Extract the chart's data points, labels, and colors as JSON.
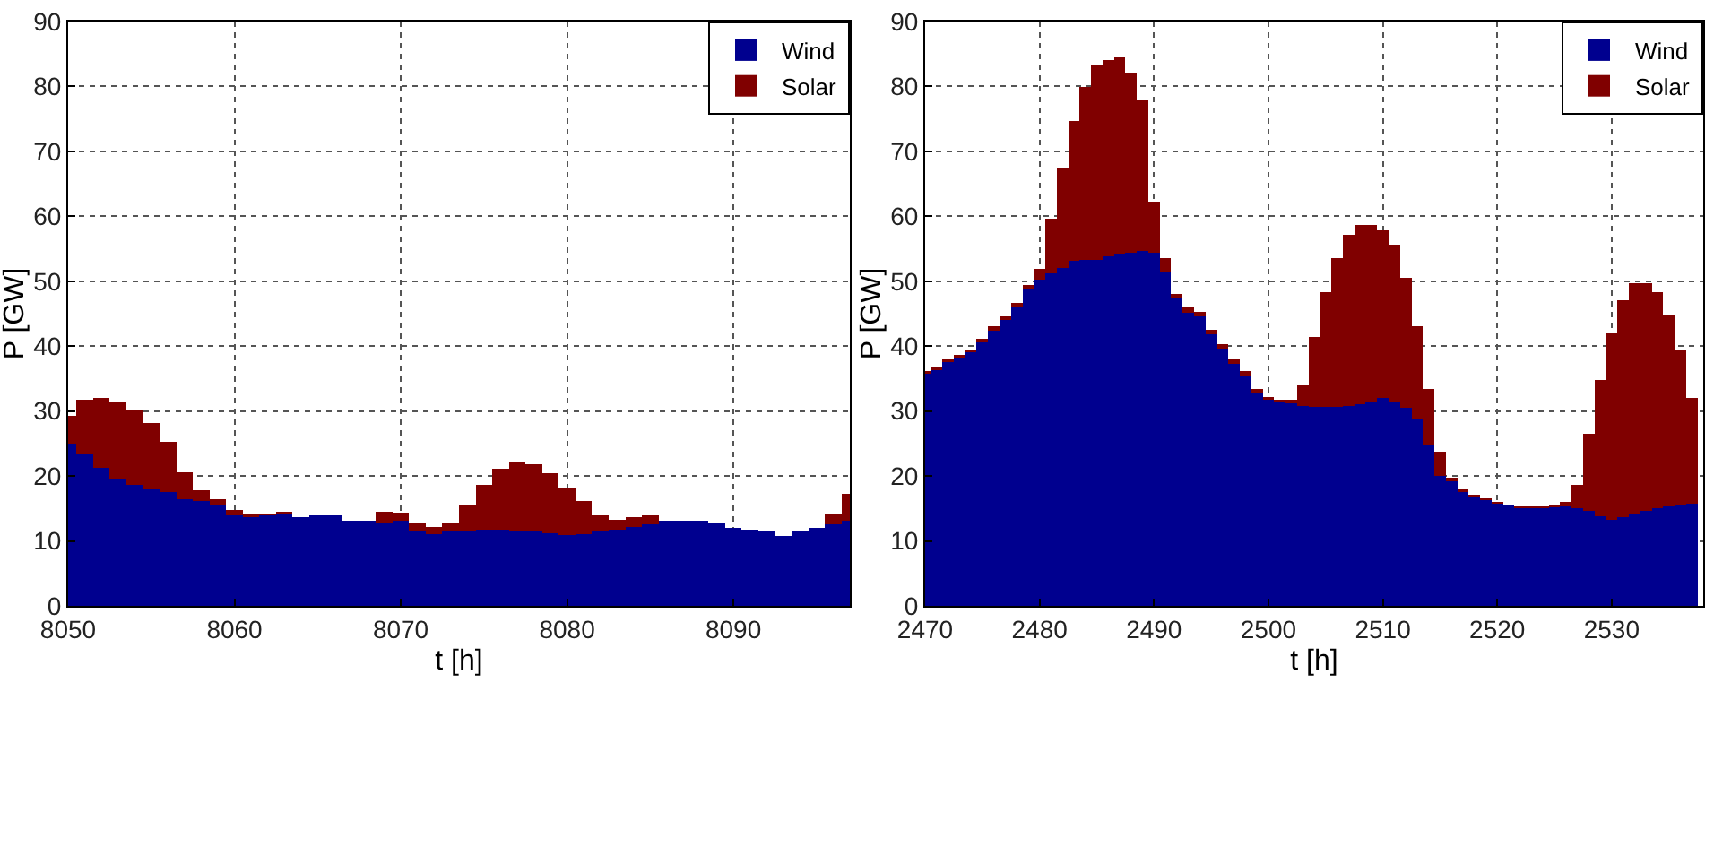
{
  "chart_data": [
    {
      "type": "bar",
      "stacked": true,
      "xlabel": "t [h]",
      "ylabel": "P [GW]",
      "x": [
        8050,
        8051,
        8052,
        8053,
        8054,
        8055,
        8056,
        8057,
        8058,
        8059,
        8060,
        8061,
        8062,
        8063,
        8064,
        8065,
        8066,
        8067,
        8068,
        8069,
        8070,
        8071,
        8072,
        8073,
        8074,
        8075,
        8076,
        8077,
        8078,
        8079,
        8080,
        8081,
        8082,
        8083,
        8084,
        8085,
        8086,
        8087,
        8088,
        8089,
        8090,
        8091,
        8092,
        8093,
        8094,
        8095,
        8096,
        8097
      ],
      "series": [
        {
          "name": "Wind",
          "color": "#00008f",
          "values": [
            25,
            23.5,
            21.2,
            19.6,
            18.7,
            18,
            17.5,
            16.4,
            16.2,
            15.4,
            14,
            13.7,
            14,
            14.2,
            13.6,
            13.9,
            13.9,
            13.1,
            13.1,
            12.9,
            13.1,
            11.5,
            11,
            11.4,
            11.5,
            11.7,
            11.7,
            11.6,
            11.4,
            11.2,
            10.9,
            11.1,
            11.4,
            11.7,
            12.1,
            12.6,
            13.1,
            13.1,
            13.1,
            12.8,
            12,
            11.7,
            11.5,
            10.7,
            11.4,
            12,
            12.6,
            13.1
          ]
        },
        {
          "name": "Solar",
          "color": "#800000",
          "values": [
            4.2,
            8.3,
            10.8,
            11.9,
            11.5,
            10.2,
            7.7,
            4.2,
            1.6,
            1,
            0.8,
            0.5,
            0.2,
            0.3,
            0,
            0,
            0,
            0,
            0,
            1.6,
            1.2,
            1.3,
            1.2,
            1.4,
            4.1,
            7,
            9.4,
            10.5,
            10.4,
            9.2,
            7.3,
            5,
            2.6,
            1.6,
            1.6,
            1.4,
            0,
            0,
            0,
            0,
            0,
            0,
            0,
            0,
            0,
            0,
            1.6,
            4.2
          ]
        }
      ],
      "xlim": [
        8050,
        8097
      ],
      "xticks": [
        8050,
        8060,
        8070,
        8080,
        8090
      ],
      "ylim": [
        0,
        90
      ],
      "yticks": [
        0,
        10,
        20,
        30,
        40,
        50,
        60,
        70,
        80,
        90
      ],
      "grid": true,
      "legend": "top right"
    },
    {
      "type": "bar",
      "stacked": true,
      "xlabel": "t [h]",
      "ylabel": "P [GW]",
      "x": [
        2470,
        2471,
        2472,
        2473,
        2474,
        2475,
        2476,
        2477,
        2478,
        2479,
        2480,
        2481,
        2482,
        2483,
        2484,
        2485,
        2486,
        2487,
        2488,
        2489,
        2490,
        2491,
        2492,
        2493,
        2494,
        2495,
        2496,
        2497,
        2498,
        2499,
        2500,
        2501,
        2502,
        2503,
        2504,
        2505,
        2506,
        2507,
        2508,
        2509,
        2510,
        2511,
        2512,
        2513,
        2514,
        2515,
        2516,
        2517,
        2518,
        2519,
        2520,
        2521,
        2522,
        2523,
        2524,
        2525,
        2526,
        2527,
        2528,
        2529,
        2530,
        2531,
        2532,
        2533,
        2534,
        2535,
        2536,
        2537
      ],
      "series": [
        {
          "name": "Wind",
          "color": "#00008f",
          "values": [
            35.7,
            36.3,
            37.5,
            38.2,
            39,
            40.6,
            42.4,
            44,
            46,
            48.8,
            50.3,
            51.2,
            52.1,
            53.1,
            53.3,
            53.3,
            53.8,
            54.2,
            54.4,
            54.7,
            54.4,
            51.5,
            47.3,
            45.2,
            44.6,
            41.8,
            39.6,
            37.3,
            35.4,
            32.9,
            31.8,
            31.5,
            31.2,
            30.8,
            30.6,
            30.6,
            30.6,
            30.8,
            31,
            31.3,
            32,
            31.5,
            30.5,
            28.8,
            24.7,
            20,
            19.2,
            17.6,
            16.8,
            16.3,
            15.8,
            15.4,
            15.1,
            15.1,
            15.1,
            15.2,
            15.3,
            15,
            14.6,
            13.8,
            13.3,
            13.6,
            14.2,
            14.6,
            15,
            15.3,
            15.6,
            15.8
          ]
        },
        {
          "name": "Solar",
          "color": "#800000",
          "values": [
            0.4,
            0.5,
            0.5,
            0.5,
            0.5,
            0.6,
            0.6,
            0.6,
            0.7,
            0.6,
            1.6,
            8.5,
            15.4,
            21.6,
            26.6,
            30.1,
            30.2,
            30.3,
            27.8,
            23.1,
            7.8,
            2,
            0.7,
            0.7,
            0.7,
            0.7,
            0.7,
            0.7,
            0.7,
            0.5,
            0.4,
            0.3,
            0.6,
            3.2,
            10.8,
            17.7,
            22.9,
            26.4,
            27.7,
            27.4,
            25.8,
            24.1,
            20,
            14.2,
            8.7,
            3.8,
            0.5,
            0.4,
            0.3,
            0.3,
            0.2,
            0.2,
            0.2,
            0.2,
            0.2,
            0.4,
            0.7,
            3.7,
            11.9,
            21,
            28.8,
            33.5,
            35.5,
            35.1,
            33.3,
            29.5,
            23.7,
            16.2
          ]
        }
      ],
      "xlim": [
        2470,
        2538
      ],
      "xticks": [
        2470,
        2480,
        2490,
        2500,
        2510,
        2520,
        2530
      ],
      "ylim": [
        0,
        90
      ],
      "yticks": [
        0,
        10,
        20,
        30,
        40,
        50,
        60,
        70,
        80,
        90
      ],
      "grid": true,
      "legend": "top right"
    }
  ]
}
